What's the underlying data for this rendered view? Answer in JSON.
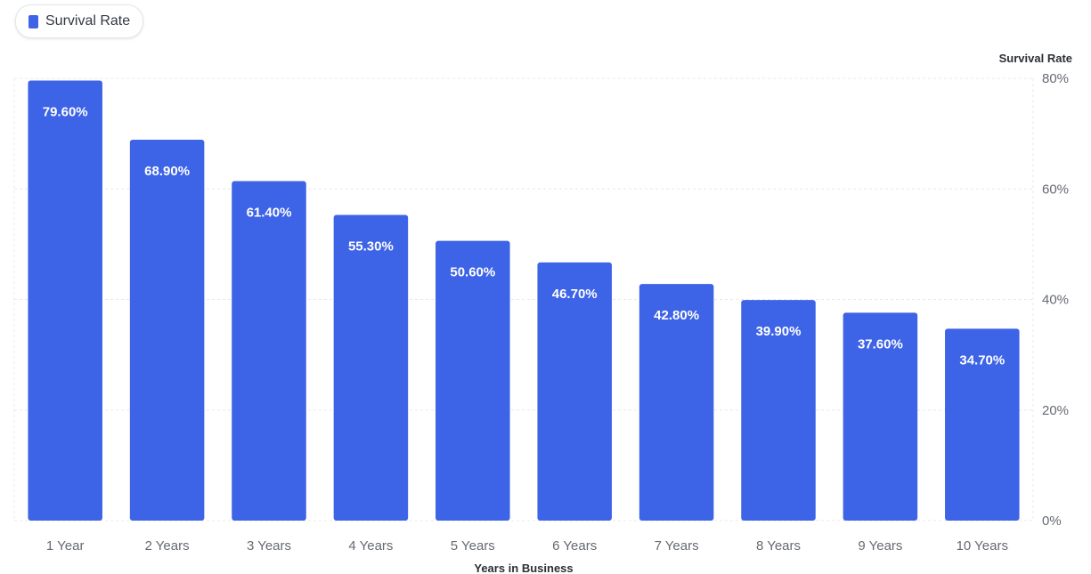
{
  "colors": {
    "bar": "#3d63e6",
    "grid": "#e6e8ec",
    "axis": "#d9dce2"
  },
  "chart_data": {
    "type": "bar",
    "categories": [
      "1 Year",
      "2 Years",
      "3 Years",
      "4 Years",
      "5 Years",
      "6 Years",
      "7 Years",
      "8 Years",
      "9 Years",
      "10 Years"
    ],
    "series": [
      {
        "name": "Survival Rate",
        "values": [
          79.6,
          68.9,
          61.4,
          55.3,
          50.6,
          46.7,
          42.8,
          39.9,
          37.6,
          34.7
        ],
        "labels": [
          "79.60%",
          "68.90%",
          "61.40%",
          "55.30%",
          "50.60%",
          "46.70%",
          "42.80%",
          "39.90%",
          "37.60%",
          "34.70%"
        ]
      }
    ],
    "xlabel": "Years in Business",
    "ylabel": "Survival Rate",
    "ylim": [
      0,
      80
    ],
    "yticks": [
      0,
      20,
      40,
      60,
      80
    ],
    "ytick_labels": [
      "0%",
      "20%",
      "40%",
      "60%",
      "80%"
    ],
    "y_axis_side": "right",
    "grid": true,
    "legend_position": "top-left"
  }
}
